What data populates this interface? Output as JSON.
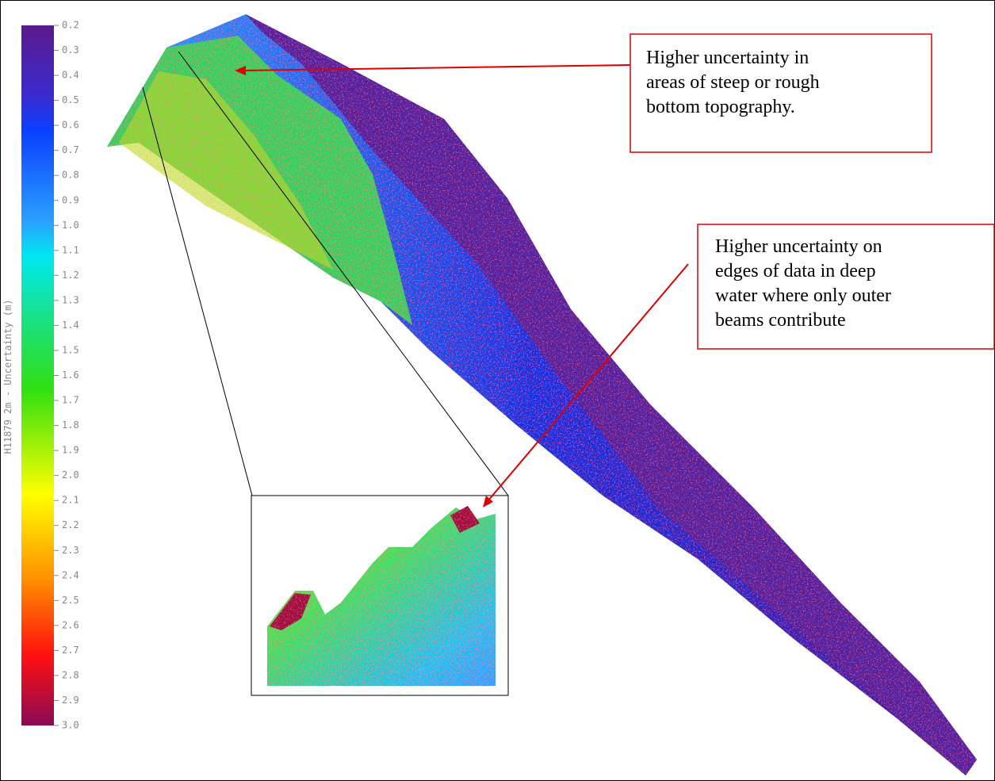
{
  "colorbar": {
    "label": "H11879 2m - Uncertainty (m)",
    "range": [
      0.2,
      3.0
    ],
    "ticks": [
      0.2,
      0.3,
      0.4,
      0.5,
      0.6,
      0.7,
      0.8,
      0.9,
      {
        "value": 1.0,
        "label": "1.0"
      },
      1.1,
      1.2,
      1.3,
      1.4,
      1.5,
      1.6,
      1.7,
      1.8,
      1.9,
      {
        "value": 2.0,
        "label": "2.0"
      },
      2.1,
      2.2,
      2.3,
      2.4,
      2.5,
      2.6,
      2.7,
      2.8,
      2.9,
      {
        "value": 3.0,
        "label": "3.0"
      }
    ]
  },
  "annotations": [
    {
      "lines": [
        "Higher uncertainty in",
        "areas of steep or rough",
        "bottom topography."
      ]
    },
    {
      "lines": [
        "Higher uncertainty on",
        "edges of data in deep",
        "water where only outer",
        "beams contribute"
      ]
    }
  ]
}
